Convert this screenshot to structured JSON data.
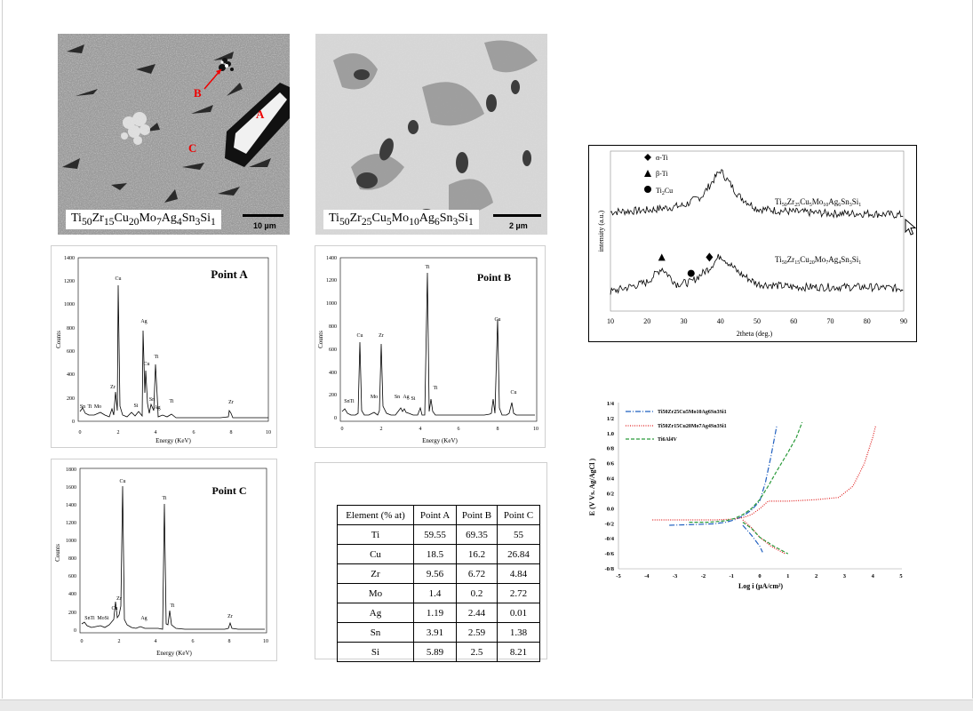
{
  "sem_images": [
    {
      "label": "Ti50Zr15Cu20Mo7Ag4Sn3Si1",
      "scale": "10 µm",
      "markers": [
        "A",
        "B",
        "C"
      ]
    },
    {
      "label": "Ti50Zr25Cu5Mo10Ag6Sn3Si1",
      "scale": "2 µm"
    }
  ],
  "eds": [
    {
      "title": "Point  A",
      "x_label": "Energy (KeV)",
      "y_label": "Counts",
      "y_ticks": [
        "0",
        "200",
        "400",
        "600",
        "800",
        "1000",
        "1200",
        "1400"
      ],
      "x_ticks": [
        "0",
        "2",
        "4",
        "6",
        "8",
        "10"
      ],
      "peak_labels": [
        "Cu",
        "Ag",
        "Cu",
        "Ti",
        "Zr",
        "Sn",
        "Ti",
        "Mo",
        "Si",
        "Sn",
        "Ag",
        "Ti",
        "Zr"
      ]
    },
    {
      "title": "Point B",
      "x_label": "Energy (KeV)",
      "y_label": "Counts",
      "y_ticks": [
        "0",
        "200",
        "400",
        "600",
        "800",
        "1000",
        "1200",
        "1400"
      ],
      "x_ticks": [
        "0",
        "2",
        "4",
        "6",
        "8",
        "10"
      ],
      "peak_labels": [
        "Ti",
        "Cu",
        "Zr",
        "Cu",
        "SnTi",
        "Mo",
        "Sn",
        "Ag",
        "Si",
        "Ti",
        "Cu"
      ]
    },
    {
      "title": "Point C",
      "x_label": "Energy (KeV)",
      "y_label": "Counts",
      "y_ticks": [
        "0",
        "200",
        "400",
        "600",
        "800",
        "1000",
        "1200",
        "1400",
        "1600",
        "1800"
      ],
      "x_ticks": [
        "0",
        "2",
        "4",
        "6",
        "8",
        "10"
      ],
      "peak_labels": [
        "Cu",
        "Ti",
        "Zr",
        "Cu",
        "SnTi",
        "MoSi",
        "Ag",
        "Ti",
        "Zr"
      ]
    }
  ],
  "composition_table": {
    "headers": [
      "Element (% at)",
      "Point A",
      "Point B",
      "Point C"
    ],
    "rows": [
      [
        "Ti",
        "59.55",
        "69.35",
        "55"
      ],
      [
        "Cu",
        "18.5",
        "16.2",
        "26.84"
      ],
      [
        "Zr",
        "9.56",
        "6.72",
        "4.84"
      ],
      [
        "Mo",
        "1.4",
        "0.2",
        "2.72"
      ],
      [
        "Ag",
        "1.19",
        "2.44",
        "0.01"
      ],
      [
        "Sn",
        "3.91",
        "2.59",
        "1.38"
      ],
      [
        "Si",
        "5.89",
        "2.5",
        "8.21"
      ]
    ]
  },
  "chart_data": [
    {
      "type": "line",
      "title": "",
      "xlabel": "2theta (deg.)",
      "ylabel": "intensity (a.u.)",
      "xlim": [
        10,
        90
      ],
      "x_ticks": [
        "10",
        "20",
        "30",
        "40",
        "50",
        "60",
        "70",
        "80",
        "90"
      ],
      "legend": [
        "α-Ti",
        "β-Ti",
        "Ti2Cu"
      ],
      "legend_position": "top-left",
      "series": [
        {
          "name": "Ti50Zr25Cu5Mo10Ag6Sn3Si1",
          "x": [
            10,
            20,
            30,
            35,
            40,
            45,
            50,
            60,
            70,
            80,
            90
          ],
          "y": [
            0.62,
            0.63,
            0.66,
            0.72,
            0.88,
            0.72,
            0.64,
            0.62,
            0.61,
            0.61,
            0.6
          ]
        },
        {
          "name": "Ti50Zr15Cu20Mo7Ag4Sn3Si1",
          "x": [
            10,
            20,
            24,
            28,
            32,
            37,
            40,
            45,
            50,
            60,
            70,
            80,
            90
          ],
          "y": [
            0.12,
            0.18,
            0.27,
            0.17,
            0.18,
            0.27,
            0.35,
            0.24,
            0.17,
            0.15,
            0.15,
            0.15,
            0.14
          ]
        }
      ],
      "annotations": [
        {
          "marker": "triangle",
          "x": 24
        },
        {
          "marker": "circle",
          "x": 32
        },
        {
          "marker": "diamond",
          "x": 37
        }
      ]
    },
    {
      "type": "line",
      "title": "",
      "xlabel": "Log i (µA/cm²)",
      "ylabel": "E (V Vs. Ag/AgCl )",
      "xlim": [
        -5,
        5
      ],
      "ylim": [
        -0.8,
        1.4
      ],
      "x_ticks": [
        "-5",
        "-4",
        "-3",
        "-2",
        "-1",
        "0",
        "1",
        "2",
        "3",
        "4",
        "5"
      ],
      "y_ticks": [
        "1/4",
        "1/2",
        "1.0",
        "0/8",
        "0/6",
        "0/4",
        "0/2",
        "0.0",
        "-0/2",
        "-0/4",
        "-0/6",
        "-0/8"
      ],
      "legend_position": "top-left",
      "series": [
        {
          "name": "Ti50Zr25Cu5Mo10Ag6Sn3Si1",
          "x": [
            -3.2,
            -2.2,
            -1.6,
            -1.2,
            -0.9,
            -0.6,
            -0.3,
            0.0,
            0.2,
            0.4,
            0.55,
            0.6
          ],
          "y": [
            -0.22,
            -0.21,
            -0.2,
            -0.18,
            -0.15,
            -0.1,
            -0.02,
            0.1,
            0.35,
            0.7,
            1.0,
            1.1
          ]
        },
        {
          "name": "Ti50Zr15Cu20Mo7Ag4Sn3Si1",
          "x": [
            -3.8,
            -2.5,
            -1.6,
            -1.0,
            -0.6,
            -0.3,
            0.0,
            0.3,
            1.0,
            2.0,
            2.8,
            3.3,
            3.7,
            4.0,
            4.1
          ],
          "y": [
            -0.15,
            -0.15,
            -0.15,
            -0.14,
            -0.12,
            -0.08,
            0.0,
            0.1,
            0.1,
            0.12,
            0.15,
            0.3,
            0.6,
            0.95,
            1.1
          ]
        },
        {
          "name": "Ti6Al4V",
          "x": [
            -2.5,
            -1.8,
            -1.2,
            -0.9,
            -0.6,
            -0.3,
            0.0,
            0.3,
            0.6,
            1.0,
            1.3,
            1.5
          ],
          "y": [
            -0.18,
            -0.18,
            -0.16,
            -0.13,
            -0.08,
            0.0,
            0.12,
            0.3,
            0.5,
            0.75,
            0.95,
            1.15
          ]
        }
      ]
    }
  ]
}
